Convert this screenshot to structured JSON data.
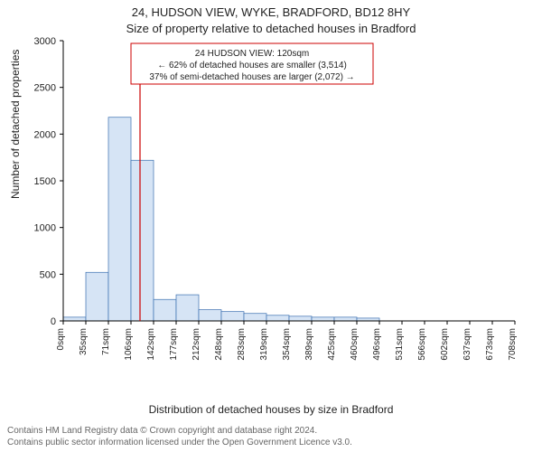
{
  "title_line1": "24, HUDSON VIEW, WYKE, BRADFORD, BD12 8HY",
  "title_line2": "Size of property relative to detached houses in Bradford",
  "ylabel": "Number of detached properties",
  "xlabel": "Distribution of detached houses by size in Bradford",
  "footer_line1": "Contains HM Land Registry data © Crown copyright and database right 2024.",
  "footer_line2": "Contains public sector information licensed under the Open Government Licence v3.0.",
  "chart": {
    "type": "histogram",
    "ylim": [
      0,
      3000
    ],
    "ytick_step": 500,
    "yticks": [
      0,
      500,
      1000,
      1500,
      2000,
      2500,
      3000
    ],
    "xticks": [
      "0sqm",
      "35sqm",
      "71sqm",
      "106sqm",
      "142sqm",
      "177sqm",
      "212sqm",
      "248sqm",
      "283sqm",
      "319sqm",
      "354sqm",
      "389sqm",
      "425sqm",
      "460sqm",
      "496sqm",
      "531sqm",
      "566sqm",
      "602sqm",
      "637sqm",
      "673sqm",
      "708sqm"
    ],
    "values": [
      40,
      520,
      2180,
      1720,
      230,
      280,
      120,
      100,
      80,
      60,
      50,
      40,
      40,
      30,
      0,
      0,
      0,
      0,
      0,
      0
    ],
    "bar_fill": "#d6e4f5",
    "bar_stroke": "#3a6fb0",
    "background_color": "#ffffff",
    "axis_color": "#000000",
    "marker_line_color": "#cc0000",
    "marker_bin_index": 3,
    "marker_fraction_in_bin": 0.4,
    "callout": {
      "lines": [
        "24 HUDSON VIEW: 120sqm",
        "← 62% of detached houses are smaller (3,514)",
        "37% of semi-detached houses are larger (2,072) →"
      ],
      "box_stroke": "#cc0000",
      "box_fill": "#ffffff",
      "text_color": "#222222",
      "fontsize": 10
    }
  }
}
